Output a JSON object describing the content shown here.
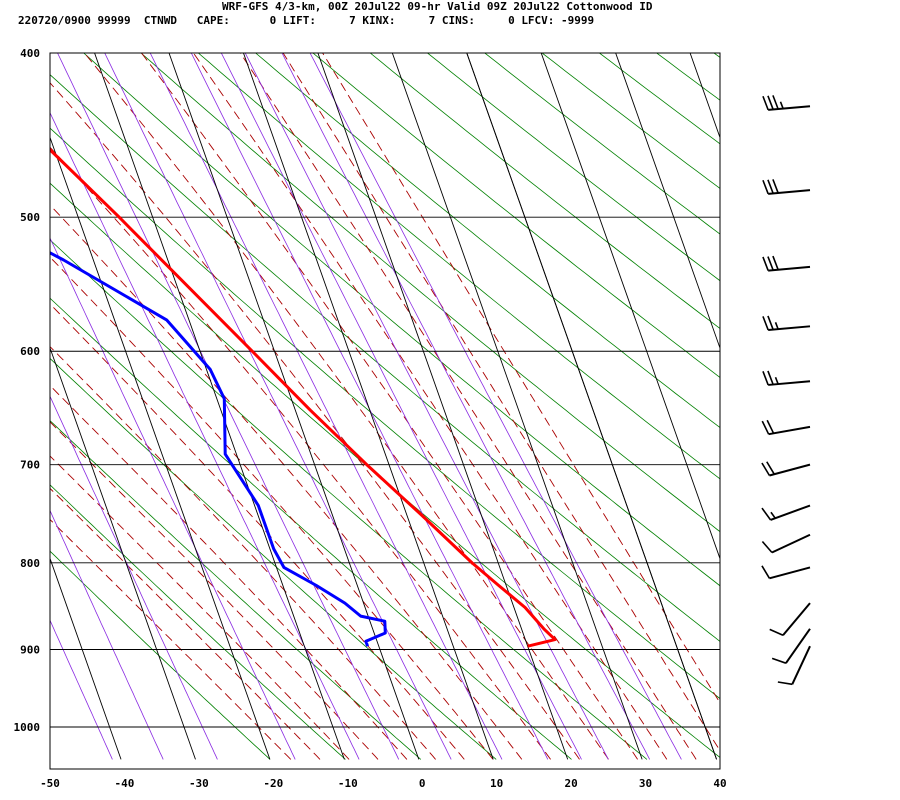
{
  "header": {
    "line1": "WRF-GFS 4/3-km, 00Z 20Jul22 09-hr Valid 09Z 20Jul22 Cottonwood ID",
    "line2": "220720/0900 99999  CTNWD   CAPE:      0 LIFT:     7 KINX:     7 CINS:     0 LFCV: -9999"
  },
  "chart_data": {
    "type": "skew-t",
    "title": "WRF-GFS 4/3-km, 00Z 20Jul22 09-hr Valid 09Z 20Jul22 Cottonwood ID",
    "xlabel": "",
    "ylabel": "",
    "x_range": [
      -50,
      40
    ],
    "y_range_pressure": [
      1040,
      400
    ],
    "y_scale": "log",
    "x_ticks": [
      -50,
      -40,
      -30,
      -20,
      -10,
      0,
      10,
      20,
      30,
      40
    ],
    "y_ticks": [
      400,
      500,
      600,
      700,
      800,
      900,
      1000
    ],
    "grid": true,
    "colors": {
      "temperature": "#ff0000",
      "dewpoint": "#0000ff",
      "isotherm": "#000000",
      "dry_adiabat": "#008000",
      "moist_adiabat": "#aa0000",
      "mixing_ratio": "#8a2be2",
      "barb": "#000000"
    },
    "series": [
      {
        "key": "temperature",
        "points": [
          [
            896,
            20.0
          ],
          [
            888,
            24.0
          ],
          [
            875,
            23.0
          ],
          [
            850,
            21.5
          ],
          [
            825,
            19.0
          ],
          [
            800,
            16.5
          ],
          [
            750,
            12.0
          ],
          [
            700,
            7.0
          ],
          [
            650,
            2.0
          ],
          [
            600,
            -3.0
          ],
          [
            550,
            -8.5
          ],
          [
            500,
            -14.5
          ],
          [
            450,
            -21.5
          ],
          [
            428,
            -25.5
          ]
        ]
      },
      {
        "key": "dewpoint",
        "points": [
          [
            896,
            -1.5
          ],
          [
            890,
            -1.5
          ],
          [
            880,
            1.5
          ],
          [
            866,
            2.0
          ],
          [
            860,
            -1.0
          ],
          [
            845,
            -2.5
          ],
          [
            825,
            -5.5
          ],
          [
            805,
            -9.0
          ],
          [
            785,
            -9.5
          ],
          [
            740,
            -9.5
          ],
          [
            690,
            -11.5
          ],
          [
            640,
            -9.0
          ],
          [
            615,
            -9.5
          ],
          [
            575,
            -13.0
          ],
          [
            530,
            -24.0
          ],
          [
            482,
            -38.5
          ],
          [
            430,
            -42.0
          ]
        ]
      }
    ],
    "wind_barbs": [
      {
        "p": 430,
        "dir": 265,
        "spd": 35
      },
      {
        "p": 482,
        "dir": 265,
        "spd": 30
      },
      {
        "p": 535,
        "dir": 265,
        "spd": 30
      },
      {
        "p": 580,
        "dir": 265,
        "spd": 25
      },
      {
        "p": 625,
        "dir": 265,
        "spd": 25
      },
      {
        "p": 665,
        "dir": 260,
        "spd": 20
      },
      {
        "p": 700,
        "dir": 255,
        "spd": 20
      },
      {
        "p": 740,
        "dir": 250,
        "spd": 15
      },
      {
        "p": 770,
        "dir": 245,
        "spd": 10
      },
      {
        "p": 805,
        "dir": 255,
        "spd": 10
      },
      {
        "p": 845,
        "dir": 220,
        "spd": 10
      },
      {
        "p": 875,
        "dir": 215,
        "spd": 10
      },
      {
        "p": 896,
        "dir": 205,
        "spd": 10
      }
    ]
  }
}
